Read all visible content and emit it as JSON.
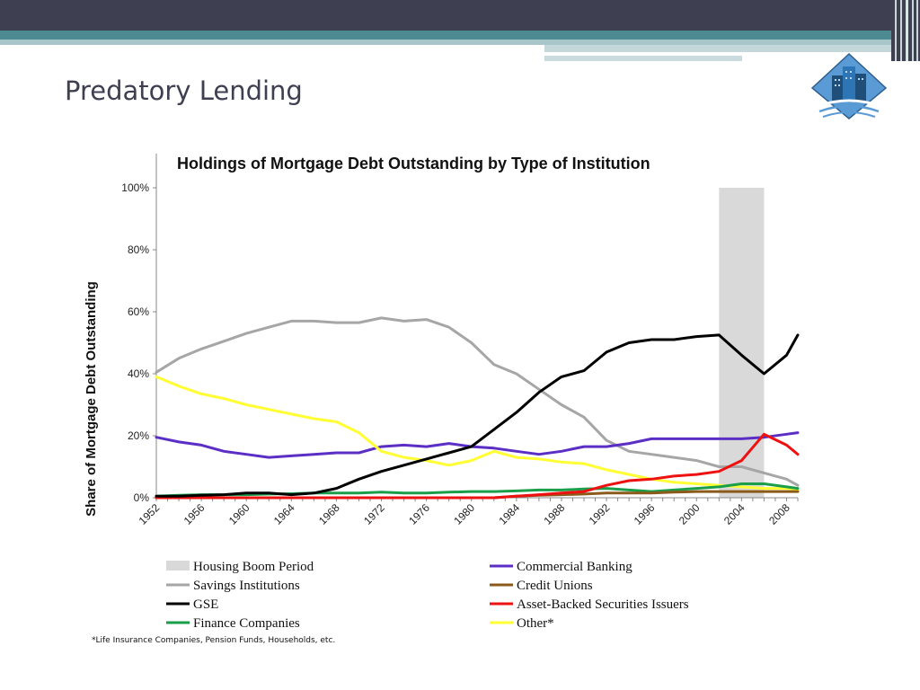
{
  "slide": {
    "title": "Predatory Lending"
  },
  "colors": {
    "top_band": "#3f3f52",
    "teal": "#4e8a92"
  },
  "chart_data": {
    "type": "line",
    "title": "Holdings of Mortgage Debt Outstanding by Type of Institution",
    "xlabel": "",
    "ylabel": "Share of Mortgage Debt Outstanding",
    "xlim": [
      1952,
      2009
    ],
    "ylim": [
      0,
      100
    ],
    "grid": false,
    "x_ticks": [
      "1952",
      "1956",
      "1960",
      "1964",
      "1968",
      "1972",
      "1976",
      "1980",
      "1984",
      "1988",
      "1992",
      "1996",
      "2000",
      "2004",
      "2008"
    ],
    "x_tick_values": [
      1952,
      1956,
      1960,
      1964,
      1968,
      1972,
      1976,
      1980,
      1984,
      1988,
      1992,
      1996,
      2000,
      2004,
      2008
    ],
    "y_ticks": [
      "0%",
      "20%",
      "40%",
      "60%",
      "80%",
      "100%"
    ],
    "y_tick_values": [
      0,
      20,
      40,
      60,
      80,
      100
    ],
    "shaded_region": {
      "name": "Housing Boom Period",
      "x_start": 2002,
      "x_end": 2006,
      "color": "#d9d9d9"
    },
    "x": [
      1952,
      1954,
      1956,
      1958,
      1960,
      1962,
      1964,
      1966,
      1968,
      1970,
      1972,
      1974,
      1976,
      1978,
      1980,
      1982,
      1984,
      1986,
      1988,
      1990,
      1992,
      1994,
      1996,
      1998,
      2000,
      2002,
      2004,
      2006,
      2008,
      2009
    ],
    "series": [
      {
        "name": "Savings Institutions",
        "color": "#a6a6a6",
        "values": [
          40.5,
          45,
          48,
          50.5,
          53,
          55,
          57,
          57,
          56.5,
          56.5,
          58,
          57,
          57.5,
          55,
          50,
          43,
          40,
          35,
          30,
          26,
          18.5,
          15,
          14,
          13,
          12,
          10,
          10,
          8,
          6,
          4
        ]
      },
      {
        "name": "GSE",
        "color": "#000000",
        "values": [
          0.5,
          0.5,
          0.8,
          1,
          1.5,
          1.5,
          1,
          1.5,
          3,
          6,
          8.5,
          10.5,
          12.5,
          14.5,
          16.5,
          22,
          27.5,
          34,
          39,
          41,
          47,
          50,
          51,
          51,
          52,
          52.5,
          46,
          40,
          46,
          52.5
        ]
      },
      {
        "name": "Commercial Banking",
        "color": "#5b2fc5",
        "values": [
          19.5,
          18,
          17,
          15,
          14,
          13,
          13.5,
          14,
          14.5,
          14.5,
          16.5,
          17,
          16.5,
          17.5,
          16.5,
          16,
          15,
          14,
          15,
          16.5,
          16.5,
          17.5,
          19,
          19,
          19,
          19,
          19,
          19.5,
          20.5,
          21
        ]
      },
      {
        "name": "Other*",
        "color": "#ffff33",
        "values": [
          39,
          36,
          33.5,
          32,
          30,
          28.5,
          27,
          25.5,
          24.5,
          21,
          15,
          13,
          12,
          10.5,
          12,
          15,
          13,
          12.5,
          11.5,
          11,
          9,
          7.5,
          6,
          5,
          4.5,
          4,
          3.5,
          3,
          3,
          2.5
        ]
      },
      {
        "name": "Asset-Backed Securities Issuers",
        "color": "#ee1111",
        "values": [
          0,
          0,
          0,
          0,
          0,
          0,
          0,
          0,
          0,
          0,
          0,
          0,
          0,
          0,
          0,
          0,
          0.5,
          1,
          1.5,
          2,
          4,
          5.5,
          6,
          7,
          7.5,
          8.5,
          12,
          20.5,
          17,
          14
        ]
      },
      {
        "name": "Finance Companies",
        "color": "#1a9e4a",
        "values": [
          0.5,
          0.8,
          1,
          1,
          1,
          1.2,
          1.3,
          1.5,
          1.5,
          1.5,
          1.8,
          1.5,
          1.5,
          1.8,
          2,
          2,
          2.2,
          2.5,
          2.5,
          2.8,
          3,
          2.5,
          2,
          2.5,
          3,
          3.5,
          4.5,
          4.5,
          3.5,
          3
        ]
      },
      {
        "name": "Credit Unions",
        "color": "#8b5a1a",
        "values": [
          0,
          0,
          0,
          0,
          0,
          0,
          0,
          0,
          0,
          0,
          0,
          0,
          0,
          0,
          0,
          0,
          0.5,
          0.8,
          1,
          1.2,
          1.5,
          1.5,
          1.5,
          1.8,
          2,
          2,
          2,
          2,
          2,
          2
        ]
      }
    ],
    "legend": {
      "placement": "bottom",
      "items": [
        {
          "label": "Housing Boom Period",
          "color": "#d9d9d9",
          "kind": "box"
        },
        {
          "label": "Commercial Banking",
          "color": "#5b2fc5",
          "kind": "line"
        },
        {
          "label": "Savings Institutions",
          "color": "#a6a6a6",
          "kind": "line"
        },
        {
          "label": "Credit Unions",
          "color": "#8b5a1a",
          "kind": "line"
        },
        {
          "label": "GSE",
          "color": "#000000",
          "kind": "line"
        },
        {
          "label": "Asset-Backed Securities Issuers",
          "color": "#ee1111",
          "kind": "line"
        },
        {
          "label": "Finance Companies",
          "color": "#1a9e4a",
          "kind": "line"
        },
        {
          "label": "Other*",
          "color": "#ffff33",
          "kind": "line"
        }
      ]
    },
    "footnote": "*Life Insurance Companies, Pension Funds, Households, etc."
  }
}
